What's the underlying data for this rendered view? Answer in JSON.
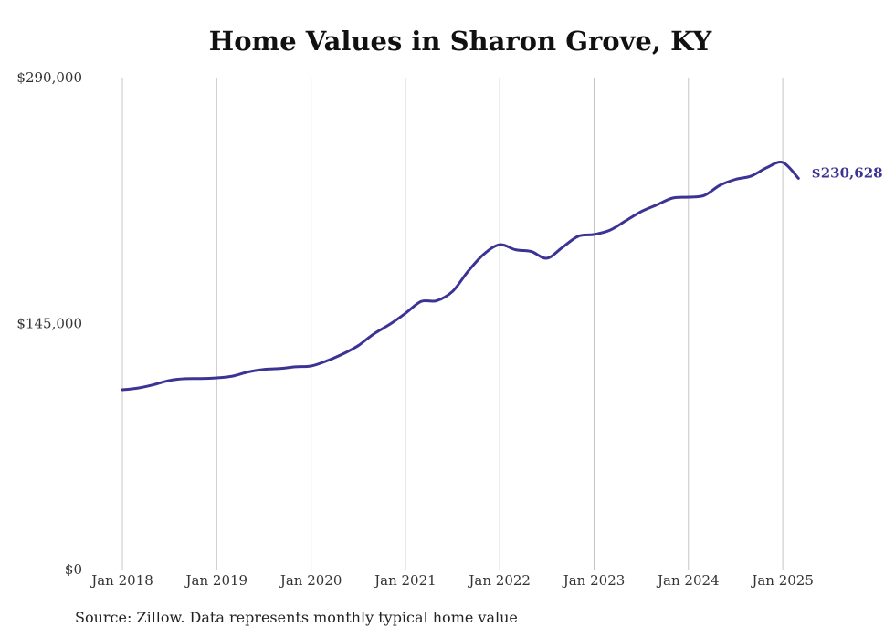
{
  "chart_data": {
    "type": "line",
    "title": "Home Values in Sharon Grove, KY",
    "xlabel": "",
    "ylabel": "",
    "xlim": [
      2018,
      2025.18
    ],
    "ylim": [
      0,
      290000
    ],
    "y_ticks": [
      "$290,000",
      "$145,000",
      "$0"
    ],
    "y_tick_values": [
      290000,
      145000,
      0
    ],
    "x_ticks": [
      "Jan 2018",
      "Jan 2019",
      "Jan 2020",
      "Jan 2021",
      "Jan 2022",
      "Jan 2023",
      "Jan 2024",
      "Jan 2025"
    ],
    "x_tick_values": [
      2018,
      2019,
      2020,
      2021,
      2022,
      2023,
      2024,
      2025
    ],
    "grid": "vertical",
    "end_label": "$230,628",
    "color": "#3b3494",
    "series": [
      {
        "x": [
          2018,
          2018.1667,
          2018.3333,
          2018.5,
          2018.6667,
          2018.8333,
          2019,
          2019.1667,
          2019.3333,
          2019.5,
          2019.6667,
          2019.8333,
          2020,
          2020.1667,
          2020.3333,
          2020.5,
          2020.6667,
          2020.8333,
          2021,
          2021.1667,
          2021.3333,
          2021.5,
          2021.6667,
          2021.8333,
          2022,
          2022.1667,
          2022.3333,
          2022.5,
          2022.6667,
          2022.8333,
          2023,
          2023.1667,
          2023.3333,
          2023.5,
          2023.6667,
          2023.8333,
          2024,
          2024.1667,
          2024.3333,
          2024.5,
          2024.6667,
          2024.8333,
          2025,
          2025.1667
        ],
        "y": [
          106000,
          107000,
          109000,
          111500,
          112500,
          112600,
          113000,
          114000,
          116500,
          118000,
          118500,
          119500,
          120000,
          123000,
          127000,
          132000,
          139000,
          144500,
          151000,
          158000,
          158500,
          164000,
          176000,
          186000,
          191500,
          188500,
          187500,
          183500,
          190000,
          196500,
          197500,
          200000,
          205500,
          211000,
          215000,
          219000,
          219500,
          220500,
          226500,
          230000,
          232000,
          237000,
          240000,
          230628
        ]
      }
    ]
  },
  "source_text": "Source: Zillow. Data represents monthly typical home value"
}
